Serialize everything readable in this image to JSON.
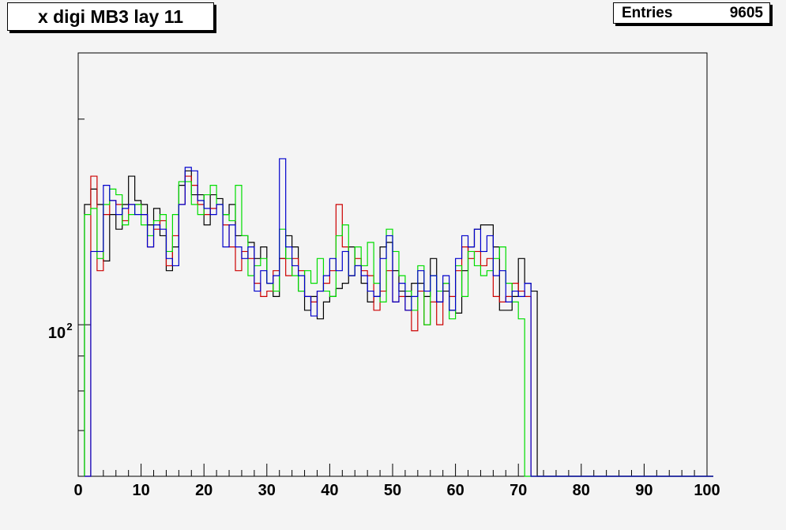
{
  "title": "x digi MB3 lay 11",
  "stats": {
    "label": "Entries",
    "value": "9605"
  },
  "colors": {
    "frame_bg": "#f4f4f4",
    "series_black": "#000000",
    "series_red": "#cc0000",
    "series_green": "#00dd00",
    "series_blue": "#0000cc"
  },
  "chart_data": {
    "type": "histogram-step",
    "log_y": true,
    "xlim": [
      0,
      100
    ],
    "ylim": [
      60,
      250
    ],
    "x_ticks": [
      "0",
      "10",
      "20",
      "30",
      "40",
      "50",
      "60",
      "70",
      "80",
      "90",
      "100"
    ],
    "y_tick_label": "10",
    "y_tick_exponent": "2",
    "bin_width": 1,
    "x_start": 1,
    "series": [
      {
        "color_key": "series_black",
        "values": [
          150,
          158,
          150,
          124,
          145,
          138,
          150,
          165,
          152,
          150,
          140,
          148,
          135,
          120,
          130,
          160,
          168,
          155,
          155,
          140,
          155,
          153,
          145,
          150,
          135,
          135,
          132,
          125,
          130,
          115,
          110,
          125,
          135,
          130,
          112,
          105,
          110,
          102,
          108,
          110,
          113,
          115,
          130,
          122,
          115,
          108,
          110,
          130,
          132,
          120,
          112,
          110,
          115,
          115,
          110,
          125,
          108,
          112,
          105,
          104,
          120,
          130,
          138,
          140,
          140,
          130,
          105,
          105,
          110,
          125,
          115,
          112,
          0,
          0,
          0,
          0,
          0,
          0,
          0,
          0,
          0,
          0,
          0,
          0,
          0,
          0,
          0,
          0,
          0,
          0,
          0,
          0,
          0,
          0,
          0,
          0,
          0,
          0,
          0,
          0
        ]
      },
      {
        "color_key": "series_red",
        "values": [
          0,
          165,
          120,
          145,
          152,
          150,
          142,
          150,
          150,
          145,
          130,
          138,
          142,
          122,
          135,
          150,
          165,
          160,
          150,
          145,
          148,
          150,
          140,
          130,
          120,
          128,
          125,
          115,
          110,
          112,
          120,
          125,
          118,
          125,
          120,
          110,
          108,
          112,
          115,
          120,
          150,
          130,
          118,
          125,
          120,
          118,
          105,
          112,
          120,
          108,
          110,
          105,
          98,
          112,
          100,
          108,
          100,
          115,
          110,
          120,
          130,
          125,
          128,
          122,
          125,
          110,
          108,
          110,
          115,
          112,
          110,
          0,
          0,
          0,
          0,
          0,
          0,
          0,
          0,
          0,
          0,
          0,
          0,
          0,
          0,
          0,
          0,
          0,
          0,
          0,
          0,
          0,
          0,
          0,
          0,
          0,
          0,
          0,
          0,
          0
        ]
      },
      {
        "color_key": "series_green",
        "values": [
          145,
          148,
          125,
          150,
          158,
          155,
          140,
          145,
          150,
          140,
          135,
          142,
          145,
          128,
          145,
          162,
          162,
          150,
          145,
          155,
          160,
          150,
          145,
          142,
          160,
          135,
          118,
          122,
          125,
          115,
          112,
          138,
          125,
          118,
          112,
          120,
          115,
          125,
          112,
          110,
          135,
          140,
          118,
          130,
          122,
          132,
          115,
          108,
          138,
          128,
          118,
          112,
          105,
          122,
          100,
          118,
          112,
          115,
          102,
          122,
          110,
          128,
          122,
          118,
          120,
          125,
          130,
          115,
          108,
          102,
          0,
          0,
          0,
          0,
          0,
          0,
          0,
          0,
          0,
          0,
          0,
          0,
          0,
          0,
          0,
          0,
          0,
          0,
          0,
          0,
          0,
          0,
          0,
          0,
          0,
          0,
          0,
          0,
          0,
          0
        ]
      },
      {
        "color_key": "series_blue",
        "values": [
          0,
          128,
          128,
          160,
          152,
          145,
          148,
          150,
          145,
          145,
          130,
          140,
          138,
          125,
          122,
          150,
          170,
          168,
          152,
          148,
          145,
          150,
          130,
          140,
          130,
          125,
          130,
          112,
          120,
          115,
          118,
          175,
          130,
          122,
          118,
          110,
          103,
          112,
          118,
          125,
          120,
          128,
          118,
          122,
          118,
          112,
          110,
          125,
          135,
          108,
          115,
          105,
          110,
          120,
          112,
          118,
          108,
          118,
          105,
          125,
          135,
          130,
          138,
          128,
          135,
          118,
          120,
          108,
          112,
          110,
          115,
          0,
          0,
          0,
          0,
          0,
          0,
          0,
          0,
          0,
          0,
          0,
          0,
          0,
          0,
          0,
          0,
          0,
          0,
          0,
          0,
          0,
          0,
          0,
          0,
          0,
          0,
          0,
          0,
          0
        ]
      }
    ]
  }
}
